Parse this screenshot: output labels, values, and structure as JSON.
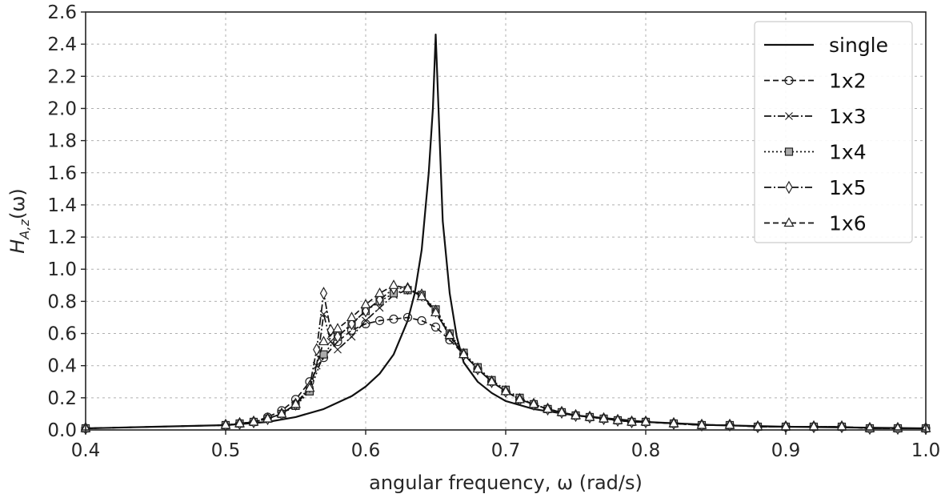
{
  "chart_data": {
    "type": "line",
    "title": "",
    "xlabel": "angular frequency, ω (rad/s)",
    "ylabel": "H_{A,z}(ω)",
    "ylabel_main": "H",
    "ylabel_sub": "A,z",
    "ylabel_tail": "(ω)",
    "xlim": [
      0.4,
      1.0
    ],
    "ylim": [
      0.0,
      2.6
    ],
    "xticks": [
      "0.4",
      "0.5",
      "0.6",
      "0.7",
      "0.8",
      "0.9",
      "1.0"
    ],
    "yticks": [
      "0.0",
      "0.2",
      "0.4",
      "0.6",
      "0.8",
      "1.0",
      "1.2",
      "1.4",
      "1.6",
      "1.8",
      "2.0",
      "2.2",
      "2.4",
      "2.6"
    ],
    "grid": true,
    "legend_position": "top-right",
    "series": [
      {
        "name": "single",
        "marker": "none",
        "dash": "solid",
        "x": [
          0.4,
          0.45,
          0.5,
          0.53,
          0.55,
          0.57,
          0.59,
          0.6,
          0.61,
          0.62,
          0.63,
          0.635,
          0.64,
          0.645,
          0.648,
          0.65,
          0.652,
          0.655,
          0.66,
          0.665,
          0.67,
          0.68,
          0.69,
          0.7,
          0.72,
          0.75,
          0.8,
          0.85,
          0.9,
          0.95,
          1.0
        ],
        "y": [
          0.01,
          0.02,
          0.03,
          0.05,
          0.08,
          0.13,
          0.21,
          0.27,
          0.35,
          0.47,
          0.68,
          0.85,
          1.12,
          1.6,
          2.0,
          2.46,
          2.0,
          1.3,
          0.85,
          0.58,
          0.42,
          0.3,
          0.23,
          0.18,
          0.13,
          0.09,
          0.05,
          0.03,
          0.02,
          0.015,
          0.01
        ]
      },
      {
        "name": "1x2",
        "marker": "circle",
        "dash": "dashed",
        "x": [
          0.4,
          0.5,
          0.51,
          0.52,
          0.53,
          0.54,
          0.55,
          0.56,
          0.57,
          0.58,
          0.59,
          0.6,
          0.61,
          0.62,
          0.63,
          0.64,
          0.65,
          0.66,
          0.67,
          0.68,
          0.69,
          0.7,
          0.71,
          0.72,
          0.73,
          0.74,
          0.75,
          0.76,
          0.77,
          0.78,
          0.79,
          0.8,
          0.82,
          0.84,
          0.86,
          0.88,
          0.9,
          0.92,
          0.94,
          0.96,
          0.98,
          1.0
        ],
        "y": [
          0.01,
          0.03,
          0.04,
          0.05,
          0.08,
          0.12,
          0.19,
          0.3,
          0.45,
          0.55,
          0.62,
          0.66,
          0.68,
          0.69,
          0.7,
          0.68,
          0.64,
          0.56,
          0.47,
          0.38,
          0.3,
          0.24,
          0.19,
          0.16,
          0.13,
          0.11,
          0.09,
          0.08,
          0.07,
          0.06,
          0.05,
          0.05,
          0.04,
          0.03,
          0.03,
          0.02,
          0.02,
          0.02,
          0.02,
          0.01,
          0.01,
          0.01
        ]
      },
      {
        "name": "1x3",
        "marker": "x",
        "dash": "dashdot",
        "x": [
          0.4,
          0.5,
          0.51,
          0.52,
          0.53,
          0.54,
          0.55,
          0.56,
          0.565,
          0.57,
          0.575,
          0.58,
          0.59,
          0.6,
          0.61,
          0.62,
          0.63,
          0.64,
          0.65,
          0.66,
          0.67,
          0.68,
          0.69,
          0.7,
          0.71,
          0.72,
          0.73,
          0.74,
          0.75,
          0.76,
          0.77,
          0.78,
          0.79,
          0.8,
          0.82,
          0.84,
          0.86,
          0.88,
          0.9,
          0.92,
          0.94,
          0.96,
          0.98,
          1.0
        ],
        "y": [
          0.01,
          0.03,
          0.04,
          0.05,
          0.07,
          0.1,
          0.16,
          0.25,
          0.4,
          0.72,
          0.55,
          0.5,
          0.58,
          0.68,
          0.76,
          0.84,
          0.87,
          0.84,
          0.74,
          0.58,
          0.47,
          0.38,
          0.3,
          0.24,
          0.19,
          0.16,
          0.13,
          0.11,
          0.09,
          0.08,
          0.07,
          0.06,
          0.05,
          0.05,
          0.04,
          0.03,
          0.03,
          0.02,
          0.02,
          0.02,
          0.02,
          0.01,
          0.01,
          0.01
        ]
      },
      {
        "name": "1x4",
        "marker": "square",
        "dash": "dotted",
        "x": [
          0.4,
          0.5,
          0.51,
          0.52,
          0.53,
          0.54,
          0.55,
          0.56,
          0.57,
          0.58,
          0.59,
          0.6,
          0.61,
          0.62,
          0.63,
          0.64,
          0.65,
          0.66,
          0.67,
          0.68,
          0.69,
          0.7,
          0.71,
          0.72,
          0.73,
          0.74,
          0.75,
          0.76,
          0.77,
          0.78,
          0.79,
          0.8,
          0.82,
          0.84,
          0.86,
          0.88,
          0.9,
          0.92,
          0.94,
          0.96,
          0.98,
          1.0
        ],
        "y": [
          0.01,
          0.03,
          0.04,
          0.05,
          0.07,
          0.1,
          0.15,
          0.24,
          0.47,
          0.58,
          0.66,
          0.74,
          0.8,
          0.85,
          0.87,
          0.84,
          0.75,
          0.6,
          0.48,
          0.39,
          0.31,
          0.25,
          0.2,
          0.16,
          0.13,
          0.11,
          0.09,
          0.08,
          0.07,
          0.06,
          0.05,
          0.05,
          0.04,
          0.03,
          0.03,
          0.02,
          0.02,
          0.02,
          0.02,
          0.01,
          0.01,
          0.01
        ]
      },
      {
        "name": "1x5",
        "marker": "thin_diamond",
        "dash": "dashdot",
        "x": [
          0.4,
          0.5,
          0.51,
          0.52,
          0.53,
          0.54,
          0.55,
          0.56,
          0.565,
          0.57,
          0.575,
          0.58,
          0.59,
          0.6,
          0.61,
          0.62,
          0.63,
          0.64,
          0.65,
          0.66,
          0.67,
          0.68,
          0.69,
          0.7,
          0.71,
          0.72,
          0.73,
          0.74,
          0.75,
          0.76,
          0.77,
          0.78,
          0.79,
          0.8,
          0.82,
          0.84,
          0.86,
          0.88,
          0.9,
          0.92,
          0.94,
          0.96,
          0.98,
          1.0
        ],
        "y": [
          0.01,
          0.03,
          0.04,
          0.05,
          0.07,
          0.1,
          0.16,
          0.27,
          0.5,
          0.85,
          0.62,
          0.58,
          0.66,
          0.74,
          0.81,
          0.88,
          0.88,
          0.84,
          0.74,
          0.59,
          0.47,
          0.38,
          0.3,
          0.24,
          0.19,
          0.16,
          0.13,
          0.11,
          0.09,
          0.08,
          0.07,
          0.06,
          0.05,
          0.05,
          0.04,
          0.03,
          0.03,
          0.02,
          0.02,
          0.02,
          0.02,
          0.01,
          0.01,
          0.01
        ]
      },
      {
        "name": "1x6",
        "marker": "triangle",
        "dash": "dashed",
        "x": [
          0.4,
          0.5,
          0.51,
          0.52,
          0.53,
          0.54,
          0.55,
          0.56,
          0.57,
          0.58,
          0.59,
          0.6,
          0.61,
          0.62,
          0.63,
          0.64,
          0.65,
          0.66,
          0.67,
          0.68,
          0.69,
          0.7,
          0.71,
          0.72,
          0.73,
          0.74,
          0.75,
          0.76,
          0.77,
          0.78,
          0.79,
          0.8,
          0.82,
          0.84,
          0.86,
          0.88,
          0.9,
          0.92,
          0.94,
          0.96,
          0.98,
          1.0
        ],
        "y": [
          0.01,
          0.03,
          0.04,
          0.05,
          0.07,
          0.1,
          0.16,
          0.26,
          0.55,
          0.63,
          0.7,
          0.78,
          0.85,
          0.9,
          0.88,
          0.83,
          0.73,
          0.59,
          0.47,
          0.38,
          0.3,
          0.24,
          0.19,
          0.16,
          0.13,
          0.11,
          0.09,
          0.08,
          0.07,
          0.06,
          0.05,
          0.05,
          0.04,
          0.03,
          0.03,
          0.02,
          0.02,
          0.02,
          0.02,
          0.01,
          0.01,
          0.01
        ]
      }
    ]
  }
}
